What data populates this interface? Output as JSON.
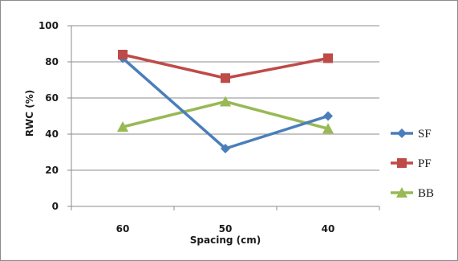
{
  "chart_data": {
    "type": "line",
    "title": "",
    "xlabel": "Spacing (cm)",
    "ylabel": "RWC (%)",
    "categories": [
      "60",
      "50",
      "40"
    ],
    "ylim": [
      0,
      100
    ],
    "yticks": [
      "0",
      "20",
      "40",
      "60",
      "80",
      "100"
    ],
    "grid": "horizontal",
    "legend_position": "right",
    "series": [
      {
        "name": "SF",
        "values": [
          82,
          32,
          50
        ],
        "color": "#4a7ebb",
        "marker": "diamond"
      },
      {
        "name": "PF",
        "values": [
          84,
          71,
          82
        ],
        "color": "#be4b48",
        "marker": "square"
      },
      {
        "name": "BB",
        "values": [
          44,
          58,
          43
        ],
        "color": "#98b954",
        "marker": "triangle"
      }
    ]
  }
}
